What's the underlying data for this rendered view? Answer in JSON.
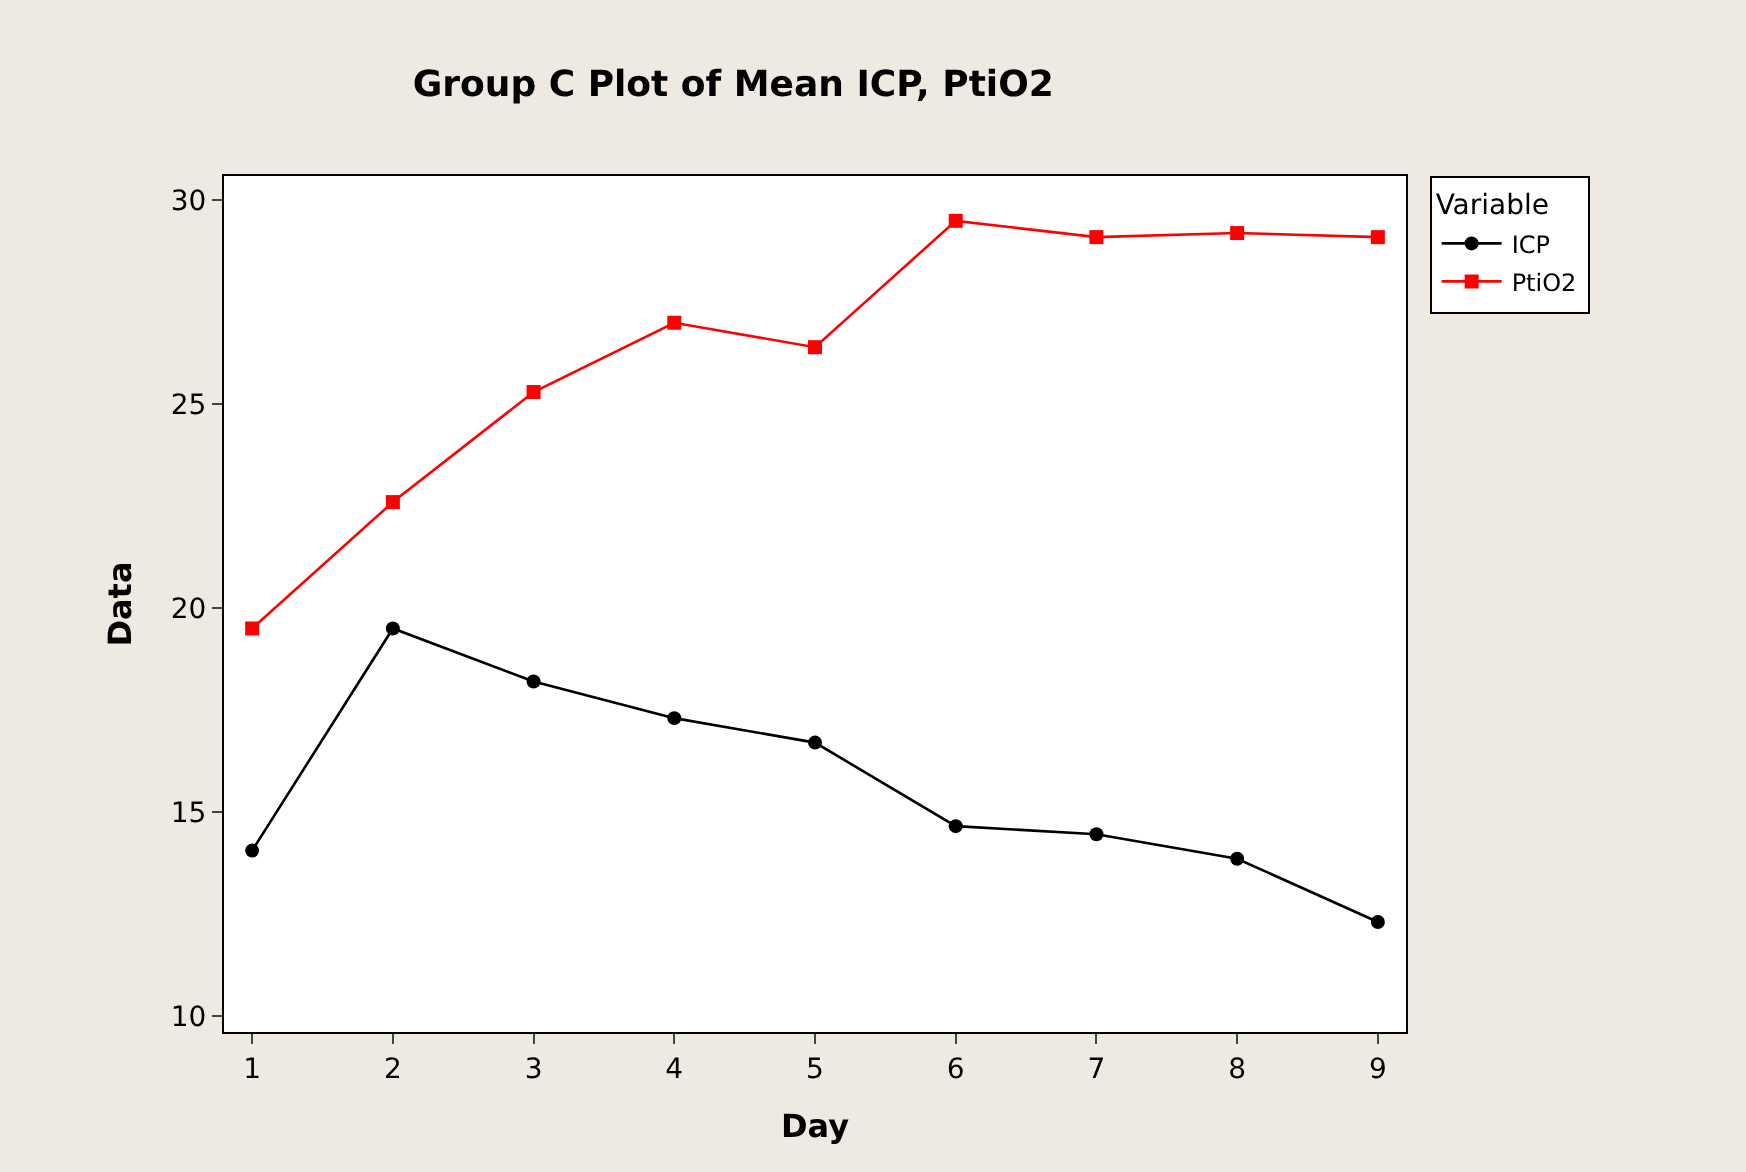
{
  "chart_data": {
    "type": "line",
    "title": "Group C Plot of Mean ICP, PtiO2",
    "xlabel": "Day",
    "ylabel": "Data",
    "legend_title": "Variable",
    "x": [
      1,
      2,
      3,
      4,
      5,
      6,
      7,
      8,
      9
    ],
    "series": [
      {
        "name": "ICP",
        "color": "#000000",
        "marker": "circle",
        "values": [
          14.05,
          19.5,
          18.2,
          17.3,
          16.7,
          14.65,
          14.45,
          13.85,
          12.3
        ]
      },
      {
        "name": "PtiO2",
        "color": "#ff0000",
        "marker": "square",
        "values": [
          19.5,
          22.6,
          25.3,
          27.0,
          26.4,
          29.5,
          29.1,
          29.2,
          29.1
        ]
      }
    ],
    "xlim": [
      0.8,
      9.2
    ],
    "xticks": [
      1,
      2,
      3,
      4,
      5,
      6,
      7,
      8,
      9
    ],
    "ylim": [
      9.6,
      30.6
    ],
    "yticks": [
      10,
      15,
      20,
      25,
      30
    ],
    "legend": "top right",
    "line_style": "solid"
  }
}
